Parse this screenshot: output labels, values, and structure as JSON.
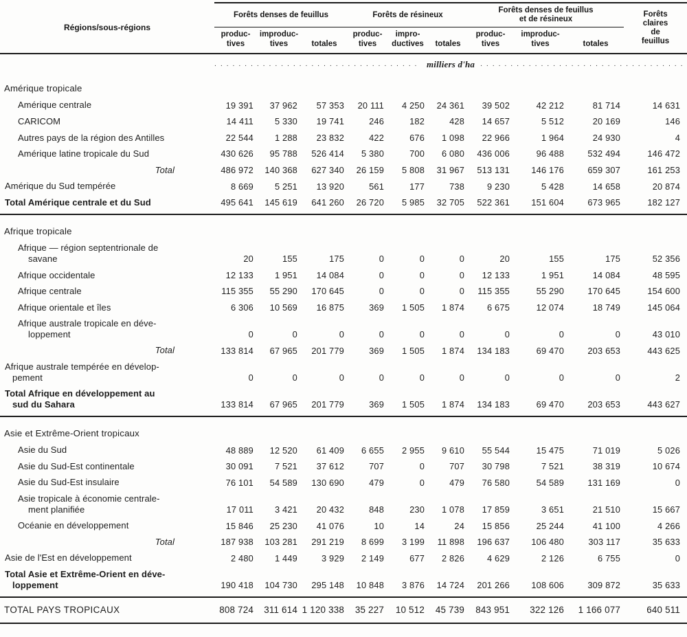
{
  "header": {
    "region_col": "Régions/sous-régions",
    "units": "milliers d'ha",
    "units_dots_left": ". . . . . . . . . . . . . . . . . . . . . . . . . . . . . . . . . . . . . . . . . . . . . . . .",
    "units_dots_right": ". . . . . . . . . . . . . . . . . . . . . . . . . . . . . . . . . . . . . . . . . . . . . . . .",
    "groups": [
      {
        "label": "Forêts denses de feuillus",
        "cols": [
          "produc-\ntives",
          "improduc-\ntives",
          "totales"
        ]
      },
      {
        "label": "Forêts de résineux",
        "cols": [
          "produc-\ntives",
          "impro-\nductives",
          "totales"
        ]
      },
      {
        "label": "Forêts denses de feuillus\net de résineux",
        "cols": [
          "produc-\ntives",
          "improduc-\ntives",
          "totales"
        ]
      },
      {
        "label": "Forêts\nclaires\nde\nfeuillus",
        "cols": []
      }
    ]
  },
  "sections": [
    {
      "heading": "Amérique tropicale",
      "rows": [
        {
          "label": "Amérique centrale",
          "indent": 1,
          "values": [
            "19 391",
            "37 962",
            "57 353",
            "20 111",
            "4 250",
            "24 361",
            "39 502",
            "42 212",
            "81 714",
            "14 631"
          ]
        },
        {
          "label": "CARICOM",
          "indent": 1,
          "values": [
            "14 411",
            "5 330",
            "19 741",
            "246",
            "182",
            "428",
            "14 657",
            "5 512",
            "20 169",
            "146"
          ]
        },
        {
          "label": "Autres pays de la région des Antilles",
          "indent": 1,
          "values": [
            "22 544",
            "1 288",
            "23 832",
            "422",
            "676",
            "1 098",
            "22 966",
            "1 964",
            "24 930",
            "4"
          ]
        },
        {
          "label": "Amérique latine tropicale du Sud",
          "indent": 1,
          "values": [
            "430 626",
            "95 788",
            "526 414",
            "5 380",
            "700",
            "6 080",
            "436 006",
            "96 488",
            "532 494",
            "146 472"
          ]
        },
        {
          "label": "Total",
          "style": "total",
          "values": [
            "486 972",
            "140 368",
            "627 340",
            "26 159",
            "5 808",
            "31 967",
            "513 131",
            "146 176",
            "659 307",
            "161 253"
          ]
        },
        {
          "label": "Amérique du Sud tempérée",
          "indent": 0,
          "values": [
            "8 669",
            "5 251",
            "13 920",
            "561",
            "177",
            "738",
            "9 230",
            "5 428",
            "14 658",
            "20 874"
          ]
        },
        {
          "label": "Total Amérique centrale et du Sud",
          "style": "bold",
          "indent": 0,
          "values": [
            "495 641",
            "145 619",
            "641 260",
            "26 720",
            "5 985",
            "32 705",
            "522 361",
            "151 604",
            "673 965",
            "182 127"
          ]
        }
      ]
    },
    {
      "heading": "Afrique tropicale",
      "rows": [
        {
          "label": "Afrique — région septentrionale de\nsavane",
          "indent": 1,
          "values": [
            "20",
            "155",
            "175",
            "0",
            "0",
            "0",
            "20",
            "155",
            "175",
            "52 356"
          ]
        },
        {
          "label": "Afrique occidentale",
          "indent": 1,
          "values": [
            "12 133",
            "1 951",
            "14 084",
            "0",
            "0",
            "0",
            "12 133",
            "1 951",
            "14 084",
            "48 595"
          ]
        },
        {
          "label": "Afrique centrale",
          "indent": 1,
          "values": [
            "115 355",
            "55 290",
            "170 645",
            "0",
            "0",
            "0",
            "115 355",
            "55 290",
            "170 645",
            "154 600"
          ]
        },
        {
          "label": "Afrique orientale et îles",
          "indent": 1,
          "values": [
            "6 306",
            "10 569",
            "16 875",
            "369",
            "1 505",
            "1 874",
            "6 675",
            "12 074",
            "18 749",
            "145 064"
          ]
        },
        {
          "label": "Afrique australe tropicale en déve-\nloppement",
          "indent": 1,
          "values": [
            "0",
            "0",
            "0",
            "0",
            "0",
            "0",
            "0",
            "0",
            "0",
            "43 010"
          ]
        },
        {
          "label": "Total",
          "style": "total",
          "values": [
            "133 814",
            "67 965",
            "201 779",
            "369",
            "1 505",
            "1 874",
            "134 183",
            "69 470",
            "203 653",
            "443 625"
          ]
        },
        {
          "label": "Afrique australe tempérée en dévelop-\npement",
          "indent": 0,
          "values": [
            "0",
            "0",
            "0",
            "0",
            "0",
            "0",
            "0",
            "0",
            "0",
            "2"
          ]
        },
        {
          "label": "Total Afrique en développement au\nsud du Sahara",
          "style": "bold",
          "indent": 0,
          "values": [
            "133 814",
            "67 965",
            "201 779",
            "369",
            "1 505",
            "1 874",
            "134 183",
            "69 470",
            "203 653",
            "443 627"
          ]
        }
      ]
    },
    {
      "heading": "Asie et Extrême-Orient tropicaux",
      "rows": [
        {
          "label": "Asie du Sud",
          "indent": 1,
          "values": [
            "48 889",
            "12 520",
            "61 409",
            "6 655",
            "2 955",
            "9 610",
            "55 544",
            "15 475",
            "71 019",
            "5 026"
          ]
        },
        {
          "label": "Asie du Sud-Est continentale",
          "indent": 1,
          "values": [
            "30 091",
            "7 521",
            "37 612",
            "707",
            "0",
            "707",
            "30 798",
            "7 521",
            "38 319",
            "10 674"
          ]
        },
        {
          "label": "Asie du Sud-Est insulaire",
          "indent": 1,
          "values": [
            "76 101",
            "54 589",
            "130 690",
            "479",
            "0",
            "479",
            "76 580",
            "54 589",
            "131 169",
            "0"
          ]
        },
        {
          "label": "Asie tropicale à économie centrale-\nment planifiée",
          "indent": 1,
          "values": [
            "17 011",
            "3 421",
            "20 432",
            "848",
            "230",
            "1 078",
            "17 859",
            "3 651",
            "21 510",
            "15 667"
          ]
        },
        {
          "label": "Océanie en développement",
          "indent": 1,
          "values": [
            "15 846",
            "25 230",
            "41 076",
            "10",
            "14",
            "24",
            "15 856",
            "25 244",
            "41 100",
            "4 266"
          ]
        },
        {
          "label": "Total",
          "style": "total",
          "values": [
            "187 938",
            "103 281",
            "291 219",
            "8 699",
            "3 199",
            "11 898",
            "196 637",
            "106 480",
            "303 117",
            "35 633"
          ]
        },
        {
          "label": "Asie de l'Est en développement",
          "indent": 0,
          "values": [
            "2 480",
            "1 449",
            "3 929",
            "2 149",
            "677",
            "2 826",
            "4 629",
            "2 126",
            "6 755",
            "0"
          ]
        },
        {
          "label": "Total Asie et Extrême-Orient en déve-\nloppement",
          "style": "bold",
          "indent": 0,
          "values": [
            "190 418",
            "104 730",
            "295 148",
            "10 848",
            "3 876",
            "14 724",
            "201 266",
            "108 606",
            "309 872",
            "35 633"
          ]
        }
      ]
    }
  ],
  "footer": {
    "label": "TOTAL PAYS TROPICAUX",
    "values": [
      "808 724",
      "311 614",
      "1 120 338",
      "35 227",
      "10 512",
      "45 739",
      "843 951",
      "322 126",
      "1 166 077",
      "640 511"
    ]
  }
}
